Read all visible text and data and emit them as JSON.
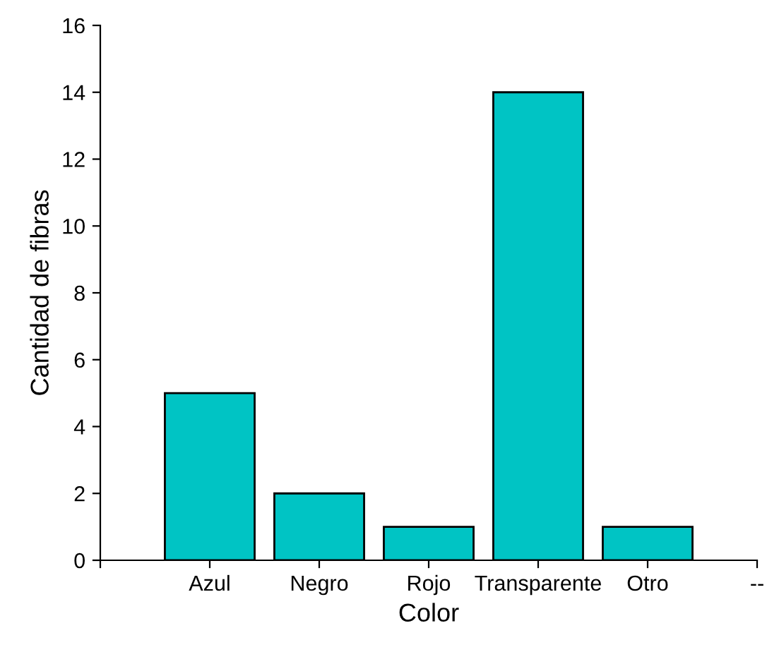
{
  "chart_data": {
    "type": "bar",
    "xlabel": "Color",
    "ylabel": "Cantidad de fibras",
    "categories": [
      null,
      "Azul",
      "Negro",
      "Rojo",
      "Transparente",
      "Otro",
      "--"
    ],
    "values": [
      null,
      5,
      2,
      1,
      14,
      1,
      null
    ],
    "color": "#00c4c4",
    "ylim": [
      0,
      16
    ],
    "yticks": [
      0,
      2,
      4,
      6,
      8,
      10,
      12,
      14,
      16
    ],
    "grid": false,
    "legend": false
  }
}
